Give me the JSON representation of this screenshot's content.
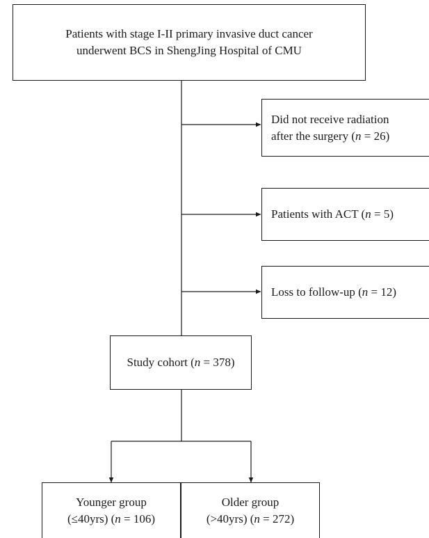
{
  "top_box": {
    "line1": "Patients with stage I-II primary invasive duct cancer",
    "line2": "underwent BCS in ShengJing Hospital of CMU"
  },
  "exclusions": [
    {
      "line1": "Did not receive radiation",
      "line2_prefix": "after the surgery (",
      "n_symbol": "n",
      "line2_suffix": " = 26)"
    },
    {
      "line1_prefix": "Patients with ACT (",
      "n_symbol": "n",
      "line1_suffix": " = 5)"
    },
    {
      "line1_prefix": "Loss to follow-up (",
      "n_symbol": "n",
      "line1_suffix": " = 12)"
    }
  ],
  "cohort_box": {
    "prefix": "Study cohort (",
    "n_symbol": "n",
    "suffix": " = 378)"
  },
  "groups": [
    {
      "line1": "Younger group",
      "line2_prefix": "(≤40yrs) (",
      "n_symbol": "n",
      "line2_suffix": " = 106)"
    },
    {
      "line1": "Older group",
      "line2_prefix": "(>40yrs) (",
      "n_symbol": "n",
      "line2_suffix": " = 272)"
    }
  ]
}
